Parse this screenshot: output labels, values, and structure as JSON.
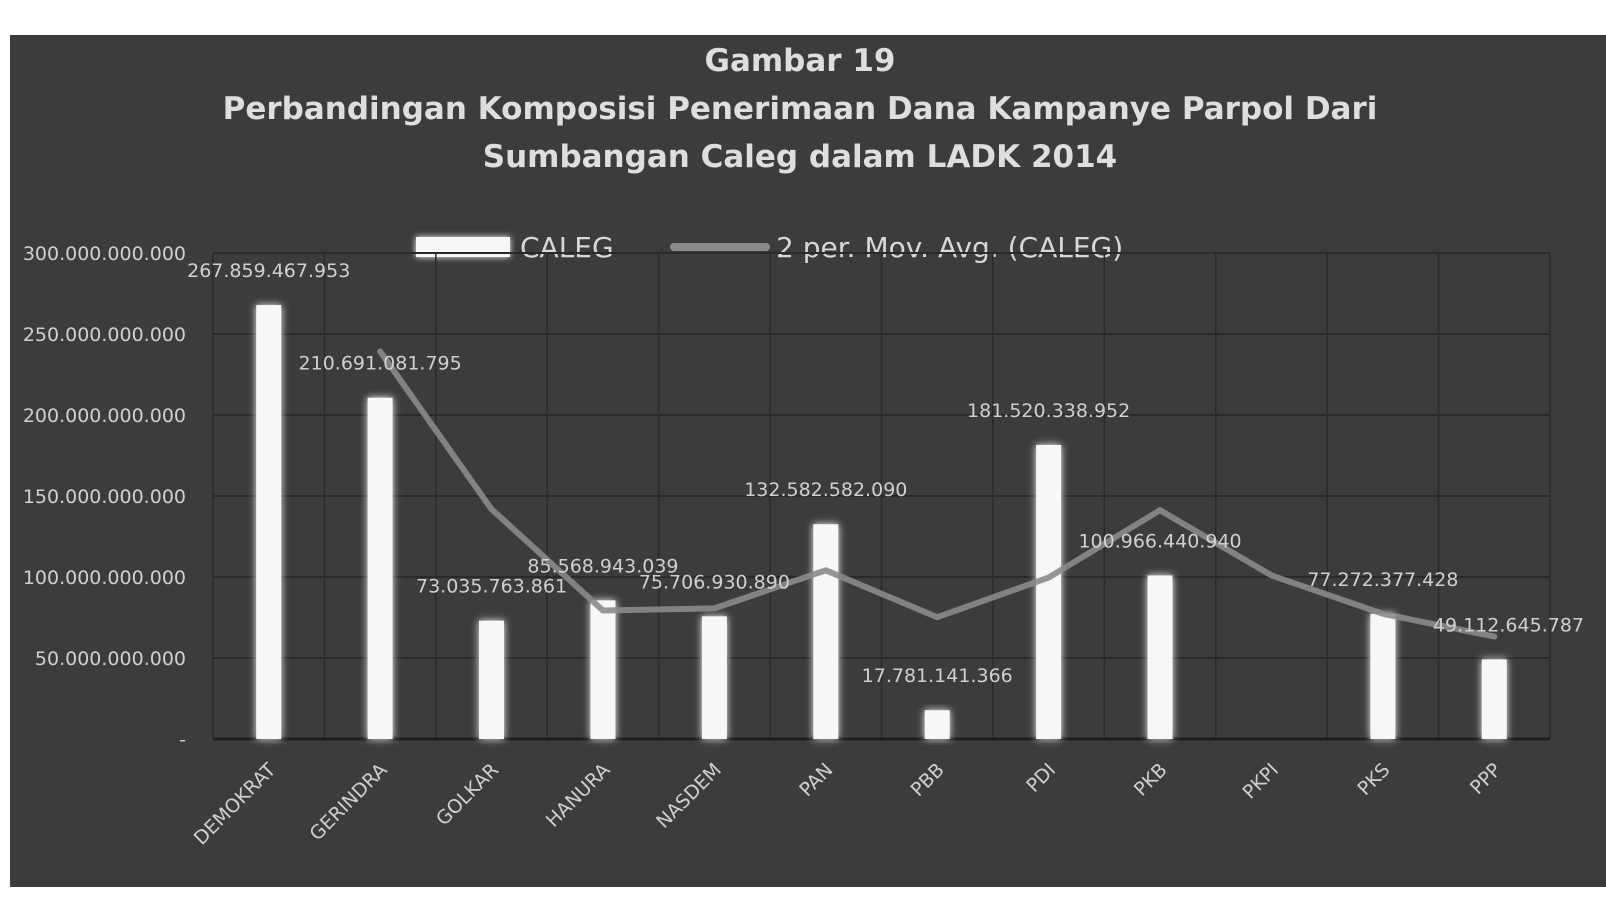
{
  "chart_data": {
    "type": "bar",
    "title_lines": [
      "Gambar 19",
      "Perbandingan Komposisi Penerimaan Dana Kampanye Parpol Dari",
      "Sumbangan Caleg dalam LADK 2014"
    ],
    "categories": [
      "DEMOKRAT",
      "GERINDRA",
      "GOLKAR",
      "HANURA",
      "NASDEM",
      "PAN",
      "PBB",
      "PDI",
      "PKB",
      "PKPI",
      "PKS",
      "PPP"
    ],
    "series": [
      {
        "name": "CALEG",
        "type": "bar",
        "values": [
          267859467953,
          210691081795,
          73035763861,
          85568943039,
          75706930890,
          132582582090,
          17781141366,
          181520338952,
          100966440940,
          0,
          77272377428,
          49112645787
        ],
        "labels": [
          "267.859.467.953",
          "210.691.081.795",
          "73.035.763.861",
          "85.568.943.039",
          "75.706.930.890",
          "132.582.582.090",
          "17.781.141.366",
          "181.520.338.952",
          "100.966.440.940",
          "",
          "77.272.377.428",
          "49.112.645.787"
        ]
      },
      {
        "name": "2 per. Mov. Avg. (CALEG)",
        "type": "line",
        "values": [
          null,
          239275274874,
          141863422828,
          79302353450,
          80637936965,
          104144756490,
          75181861728,
          99650740159,
          141243389946,
          100966440940,
          77272377428,
          63192511608
        ]
      }
    ],
    "yticks": [
      "300.000.000.000",
      "250.000.000.000",
      "200.000.000.000",
      "150.000.000.000",
      "100.000.000.000",
      "50.000.000.000",
      "-"
    ],
    "ylim": [
      0,
      300000000000
    ],
    "grid": true,
    "legend_position": "top"
  },
  "colors": {
    "background": "#3c3c3c",
    "bar": "#f7f7f7",
    "bar_glow": "#ffffff",
    "line": "#8a8a8a",
    "grid": "#2a2a2a",
    "text": "#d0d0d0",
    "title": "#dedede"
  }
}
